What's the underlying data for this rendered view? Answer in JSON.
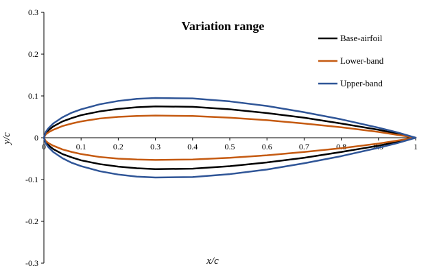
{
  "chart_data": {
    "type": "line",
    "title": "Variation range",
    "xlabel": "x/c",
    "ylabel": "y/c",
    "xlim": [
      0,
      1
    ],
    "ylim": [
      -0.3,
      0.3
    ],
    "x_ticks": [
      "0",
      "0.1",
      "0.2",
      "0.3",
      "0.4",
      "0.5",
      "0.6",
      "0.7",
      "0.8",
      "0.9",
      "1"
    ],
    "y_ticks": [
      "0.3",
      "0.2",
      "0.1",
      "0",
      "-0.1",
      "-0.2",
      "-0.3"
    ],
    "grid": false,
    "legend_position": "top-right",
    "x": [
      0,
      0.005,
      0.0125,
      0.025,
      0.05,
      0.075,
      0.1,
      0.15,
      0.2,
      0.25,
      0.3,
      0.4,
      0.5,
      0.6,
      0.7,
      0.8,
      0.9,
      0.95,
      1.0
    ],
    "series": [
      {
        "name": "Base-airfoil",
        "color": "#000000",
        "upper": [
          0,
          0.011,
          0.018,
          0.027,
          0.039,
          0.047,
          0.054,
          0.063,
          0.069,
          0.073,
          0.075,
          0.074,
          0.068,
          0.059,
          0.048,
          0.034,
          0.019,
          0.01,
          0.0
        ],
        "lower": [
          0,
          -0.011,
          -0.018,
          -0.027,
          -0.039,
          -0.047,
          -0.054,
          -0.063,
          -0.069,
          -0.073,
          -0.075,
          -0.074,
          -0.068,
          -0.059,
          -0.048,
          -0.034,
          -0.019,
          -0.01,
          0.0
        ]
      },
      {
        "name": "Lower-band",
        "color": "#c55a11",
        "upper": [
          0,
          0.008,
          0.013,
          0.019,
          0.028,
          0.034,
          0.039,
          0.046,
          0.05,
          0.052,
          0.053,
          0.052,
          0.048,
          0.042,
          0.034,
          0.025,
          0.014,
          0.007,
          0.0
        ],
        "lower": [
          0,
          -0.008,
          -0.013,
          -0.019,
          -0.028,
          -0.034,
          -0.039,
          -0.046,
          -0.05,
          -0.052,
          -0.053,
          -0.052,
          -0.048,
          -0.042,
          -0.034,
          -0.025,
          -0.014,
          -0.007,
          0.0
        ]
      },
      {
        "name": "Upper-band",
        "color": "#2f5597",
        "upper": [
          0,
          0.014,
          0.023,
          0.034,
          0.049,
          0.06,
          0.068,
          0.08,
          0.088,
          0.093,
          0.095,
          0.094,
          0.087,
          0.076,
          0.061,
          0.044,
          0.024,
          0.013,
          0.0
        ],
        "lower": [
          0,
          -0.014,
          -0.023,
          -0.034,
          -0.049,
          -0.06,
          -0.068,
          -0.08,
          -0.088,
          -0.093,
          -0.095,
          -0.094,
          -0.087,
          -0.076,
          -0.061,
          -0.044,
          -0.024,
          -0.013,
          0.0
        ]
      }
    ]
  }
}
